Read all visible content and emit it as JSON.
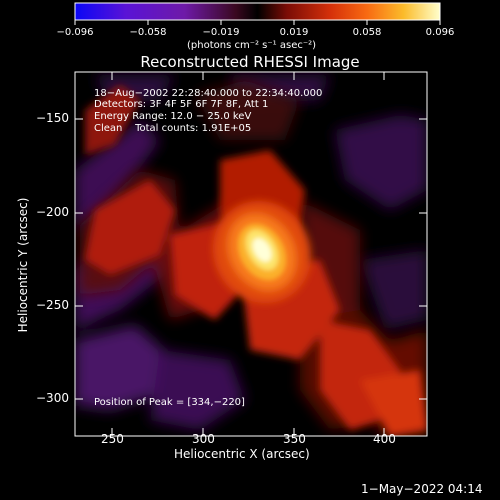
{
  "colorbar": {
    "tick_labels": [
      "−0.096",
      "−0.058",
      "−0.019",
      "0.019",
      "0.058",
      "0.096"
    ],
    "units_text": "(photons cm⁻² s⁻¹ asec⁻²)",
    "colors": [
      "#0a06f6",
      "#5a13d6",
      "#6e1aa8",
      "#3a0820",
      "#000000",
      "#7a0c06",
      "#d5300a",
      "#f86a12",
      "#fbbb2a",
      "#ffffcc"
    ]
  },
  "title": "Reconstructed RHESSI Image",
  "info_lines": [
    "18−Aug−2002 22:28:40.000 to 22:34:40.000",
    "Detectors: 3F 4F 5F 6F 7F 8F, Att 1",
    "Energy Range: 12.0 − 25.0 keV",
    "Clean    Total counts: 1.91E+05"
  ],
  "peak_text": "Position of Peak = [334,−220]",
  "x_axis": {
    "title": "Heliocentric X (arcsec)",
    "ticks": [
      "250",
      "300",
      "350",
      "400"
    ],
    "range": [
      230,
      422
    ]
  },
  "y_axis": {
    "title": "Heliocentric Y (arcsec)",
    "ticks": [
      "−150",
      "−200",
      "−250",
      "−300"
    ],
    "range": [
      -315,
      -123
    ]
  },
  "timestamp": "1−May−2022 04:14"
}
